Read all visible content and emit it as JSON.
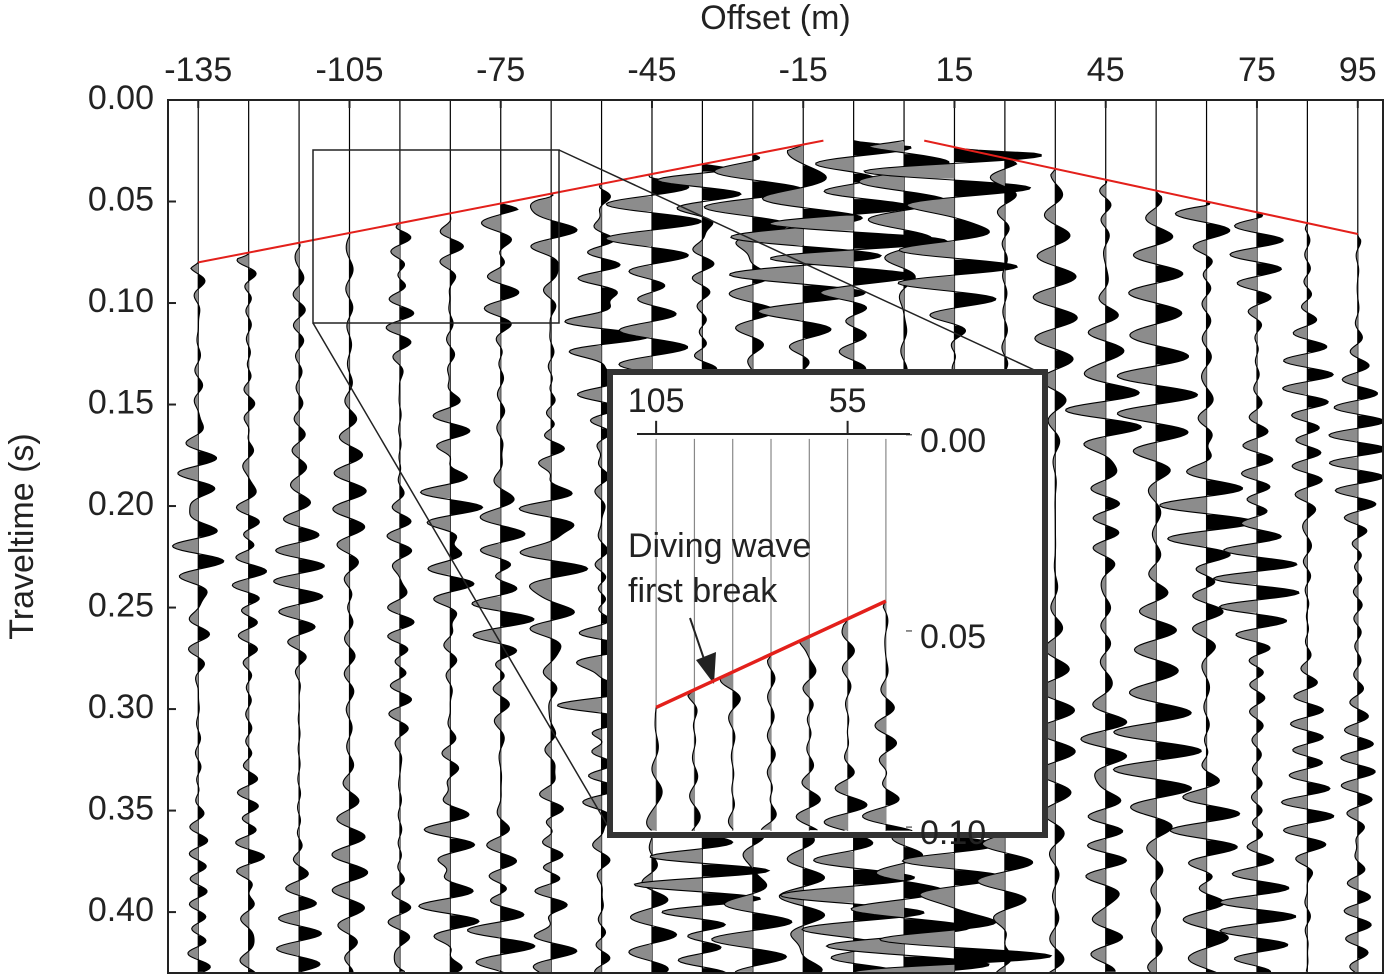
{
  "chart_data": [
    {
      "type": "wiggle",
      "title": "Offset (m)",
      "ylabel": "Traveltime (s)",
      "xlim": [
        -141,
        100
      ],
      "ylim": [
        0,
        0.43
      ],
      "xticks": [
        -135,
        -105,
        -75,
        -45,
        -15,
        15,
        45,
        75,
        95
      ],
      "yticks": [
        {
          "value": 0,
          "label": "0.00"
        },
        0.05,
        {
          "value": 0.1,
          "label": "0.10"
        },
        0.15,
        {
          "value": 0.2,
          "label": "0.20"
        },
        0.25,
        {
          "value": 0.3,
          "label": "0.30"
        },
        0.35,
        {
          "value": 0.4,
          "label": "0.40"
        }
      ],
      "trace_offsets": [
        -135,
        -125,
        -115,
        -105,
        -95,
        -85,
        -75,
        -65,
        -55,
        -45,
        -35,
        -25,
        -15,
        -5,
        5,
        15,
        25,
        35,
        45,
        55,
        65,
        75,
        85,
        95
      ],
      "lines": [
        {
          "color": "#e3201b",
          "x": [
            -135,
            -11
          ],
          "y": [
            0.08,
            0.02
          ]
        },
        {
          "color": "#e3201b",
          "x": [
            9,
            95
          ],
          "y": [
            0.02,
            0.066
          ]
        }
      ]
    },
    {
      "type": "wiggle",
      "xlim": [
        116,
        4.5
      ],
      "ylim": [
        -0.015,
        0.101
      ],
      "xticks": [
        105,
        55
      ],
      "yticks": [
        {
          "value": 0,
          "label": "0.00"
        },
        0.05,
        {
          "value": 0.1,
          "label": "0.10"
        }
      ],
      "trace_offsets": [
        105,
        95,
        85,
        75,
        65,
        55,
        45
      ],
      "lines": [
        {
          "color": "#e3201b",
          "x": [
            105,
            45
          ],
          "y": [
            0.0695,
            0.0424
          ]
        }
      ],
      "annotation": [
        "Diving wave",
        "first break"
      ]
    }
  ]
}
